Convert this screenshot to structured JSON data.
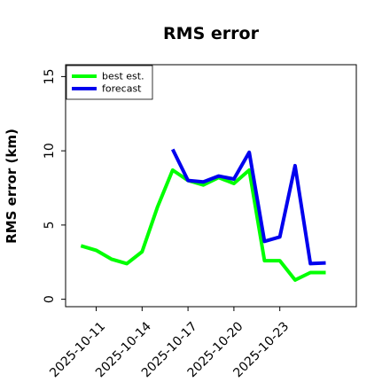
{
  "chart_data": {
    "type": "line",
    "title": "RMS error",
    "xlabel": "",
    "ylabel": "RMS error (km)",
    "x_ticks": [
      "2025-10-11",
      "2025-10-14",
      "2025-10-17",
      "2025-10-20",
      "2025-10-23"
    ],
    "x_range": [
      "2025-10-09",
      "2025-10-28"
    ],
    "ylim": [
      -0.5,
      15.8
    ],
    "y_ticks": [
      0,
      5,
      10,
      15
    ],
    "grid": false,
    "legend_position": "top-left",
    "series": [
      {
        "name": "best est.",
        "color": "#00ff00",
        "x": [
          "2025-10-10",
          "2025-10-11",
          "2025-10-12",
          "2025-10-13",
          "2025-10-14",
          "2025-10-15",
          "2025-10-16",
          "2025-10-17",
          "2025-10-18",
          "2025-10-19",
          "2025-10-20",
          "2025-10-21",
          "2025-10-22",
          "2025-10-23",
          "2025-10-24",
          "2025-10-25",
          "2025-10-26"
        ],
        "y": [
          3.6,
          3.3,
          2.7,
          2.4,
          3.2,
          6.2,
          8.7,
          8.0,
          7.7,
          8.2,
          7.8,
          8.7,
          2.6,
          2.6,
          1.3,
          1.8,
          1.8
        ]
      },
      {
        "name": "forecast",
        "color": "#0000ee",
        "x": [
          "2025-10-16",
          "2025-10-17",
          "2025-10-18",
          "2025-10-19",
          "2025-10-20",
          "2025-10-21",
          "2025-10-22",
          "2025-10-23",
          "2025-10-24",
          "2025-10-25",
          "2025-10-26"
        ],
        "y": [
          10.1,
          8.0,
          7.9,
          8.3,
          8.1,
          9.9,
          3.9,
          4.2,
          9.0,
          2.4,
          2.45
        ]
      }
    ]
  }
}
